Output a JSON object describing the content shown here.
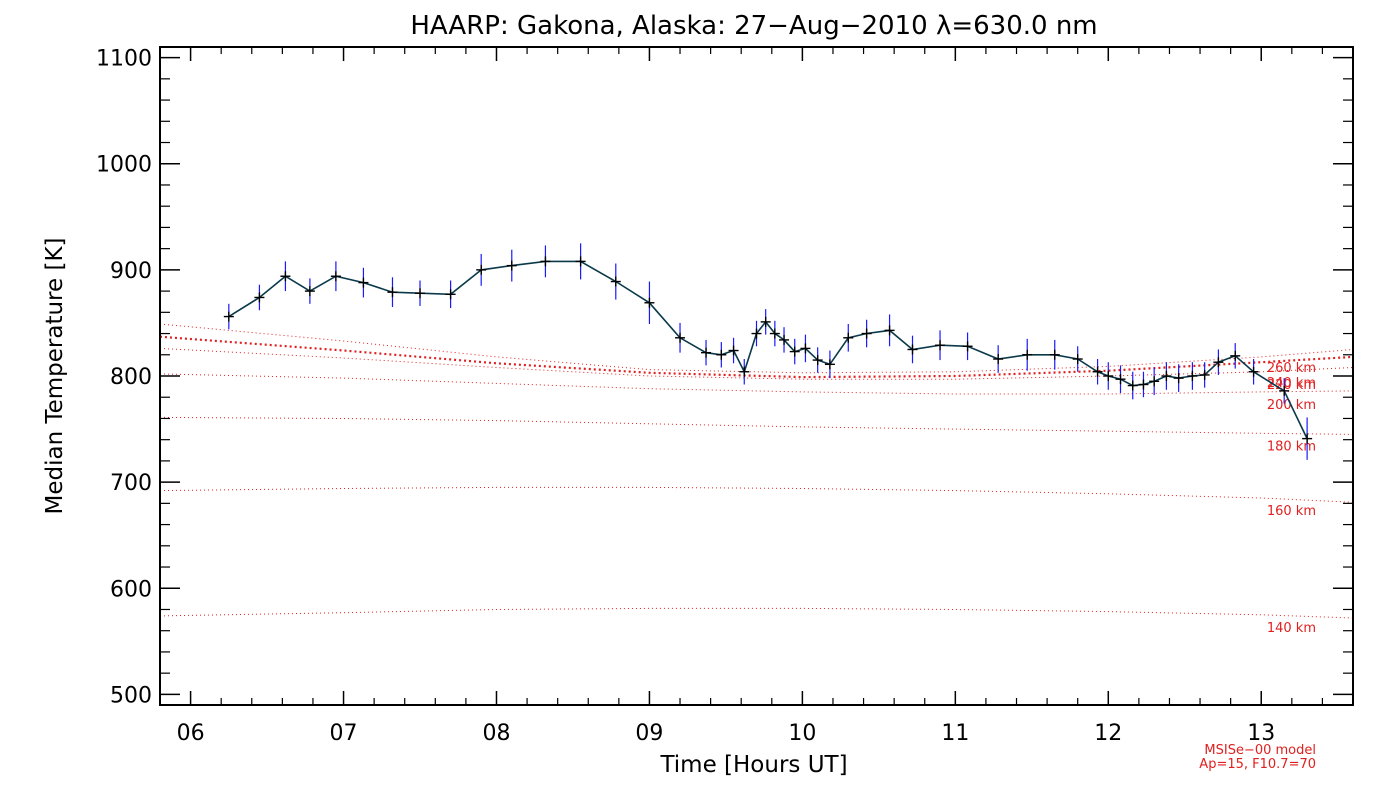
{
  "chart_data": {
    "type": "line",
    "title": "HAARP: Gakona,  Alaska: 27−Aug−2010 λ=630.0 nm",
    "xlabel": "Time [Hours UT]",
    "ylabel": "Median Temperature [K]",
    "xlim": [
      5.8,
      13.6
    ],
    "ylim": [
      490,
      1110
    ],
    "x_ticks": [
      6,
      7,
      8,
      9,
      10,
      11,
      12,
      13
    ],
    "x_tick_labels": [
      "06",
      "07",
      "08",
      "09",
      "10",
      "11",
      "12",
      "13"
    ],
    "y_ticks": [
      500,
      600,
      700,
      800,
      900,
      1000,
      1100
    ],
    "y_tick_labels": [
      "500",
      "600",
      "700",
      "800",
      "900",
      "1000",
      "1100"
    ],
    "grid": false,
    "colors": {
      "measurement_line": "#0a3a4a",
      "error_bar": "#1a1aff",
      "marker": "#000000",
      "model": "#e02020"
    },
    "series": [
      {
        "points": [
          [
            6.25,
            856,
            12
          ],
          [
            6.45,
            874,
            12
          ],
          [
            6.62,
            894,
            14
          ],
          [
            6.78,
            880,
            12
          ],
          [
            6.95,
            894,
            14
          ],
          [
            7.13,
            888,
            14
          ],
          [
            7.32,
            879,
            14
          ],
          [
            7.5,
            878,
            12
          ],
          [
            7.7,
            877,
            13
          ],
          [
            7.9,
            900,
            15
          ],
          [
            8.1,
            904,
            15
          ],
          [
            8.32,
            908,
            15
          ],
          [
            8.55,
            908,
            17
          ],
          [
            8.78,
            889,
            17
          ],
          [
            9.0,
            869,
            20
          ],
          [
            9.2,
            836,
            14
          ],
          [
            9.37,
            822,
            12
          ],
          [
            9.47,
            820,
            12
          ],
          [
            9.55,
            824,
            12
          ],
          [
            9.62,
            804,
            12
          ],
          [
            9.7,
            840,
            12
          ],
          [
            9.76,
            851,
            12
          ],
          [
            9.82,
            840,
            12
          ],
          [
            9.88,
            834,
            12
          ],
          [
            9.95,
            823,
            12
          ],
          [
            10.02,
            826,
            13
          ],
          [
            10.1,
            815,
            12
          ],
          [
            10.18,
            811,
            13
          ],
          [
            10.3,
            836,
            13
          ],
          [
            10.42,
            840,
            13
          ],
          [
            10.57,
            843,
            15
          ],
          [
            10.72,
            825,
            13
          ],
          [
            10.9,
            829,
            14
          ],
          [
            11.08,
            828,
            13
          ],
          [
            11.28,
            816,
            13
          ],
          [
            11.47,
            820,
            15
          ],
          [
            11.65,
            820,
            14
          ],
          [
            11.8,
            816,
            12
          ],
          [
            11.93,
            804,
            12
          ],
          [
            12.0,
            800,
            13
          ],
          [
            12.08,
            797,
            13
          ],
          [
            12.16,
            791,
            13
          ],
          [
            12.23,
            792,
            12
          ],
          [
            12.3,
            795,
            13
          ],
          [
            12.38,
            800,
            13
          ],
          [
            12.46,
            798,
            13
          ],
          [
            12.55,
            800,
            13
          ],
          [
            12.63,
            801,
            12
          ],
          [
            12.72,
            813,
            12
          ],
          [
            12.83,
            819,
            12
          ],
          [
            12.95,
            804,
            12
          ],
          [
            13.15,
            786,
            12
          ],
          [
            13.3,
            741,
            20
          ]
        ]
      }
    ],
    "model_curves": [
      {
        "label": "140 km",
        "x": [
          5.8,
          7.0,
          8.0,
          9.0,
          10.0,
          11.0,
          12.0,
          13.0,
          13.6
        ],
        "y": [
          574,
          577,
          580,
          581,
          581,
          580,
          578,
          575,
          572
        ]
      },
      {
        "label": "160 km",
        "x": [
          5.8,
          7.0,
          8.0,
          9.0,
          10.0,
          11.0,
          12.0,
          13.0,
          13.6
        ],
        "y": [
          692,
          694,
          695,
          695,
          694,
          692,
          689,
          685,
          681
        ]
      },
      {
        "label": "180 km",
        "x": [
          5.8,
          7.0,
          8.0,
          9.0,
          10.0,
          11.0,
          12.0,
          13.0,
          13.6
        ],
        "y": [
          761,
          760,
          758,
          755,
          752,
          750,
          748,
          746,
          745
        ]
      },
      {
        "label": "200 km",
        "x": [
          5.8,
          7.0,
          8.0,
          9.0,
          10.0,
          11.0,
          12.0,
          13.0,
          13.6
        ],
        "y": [
          802,
          798,
          793,
          788,
          785,
          783,
          783,
          785,
          786
        ]
      },
      {
        "label": "220 km",
        "x": [
          5.8,
          7.0,
          8.0,
          9.0,
          10.0,
          11.0,
          12.0,
          13.0,
          13.6
        ],
        "y": [
          826,
          817,
          808,
          800,
          797,
          797,
          800,
          804,
          808
        ]
      },
      {
        "label": "240 km",
        "x": [
          5.8,
          7.0,
          8.0,
          9.0,
          10.0,
          11.0,
          12.0,
          13.0,
          13.6
        ],
        "y": [
          837,
          824,
          812,
          803,
          799,
          800,
          805,
          813,
          818
        ]
      },
      {
        "label": "260 km",
        "x": [
          5.8,
          7.0,
          8.0,
          9.0,
          10.0,
          11.0,
          12.0,
          13.0,
          13.6
        ],
        "y": [
          849,
          833,
          818,
          806,
          803,
          804,
          809,
          818,
          825
        ]
      }
    ],
    "model_note": [
      "MSISe−00 model",
      "Ap=15, F10.7=70"
    ]
  }
}
